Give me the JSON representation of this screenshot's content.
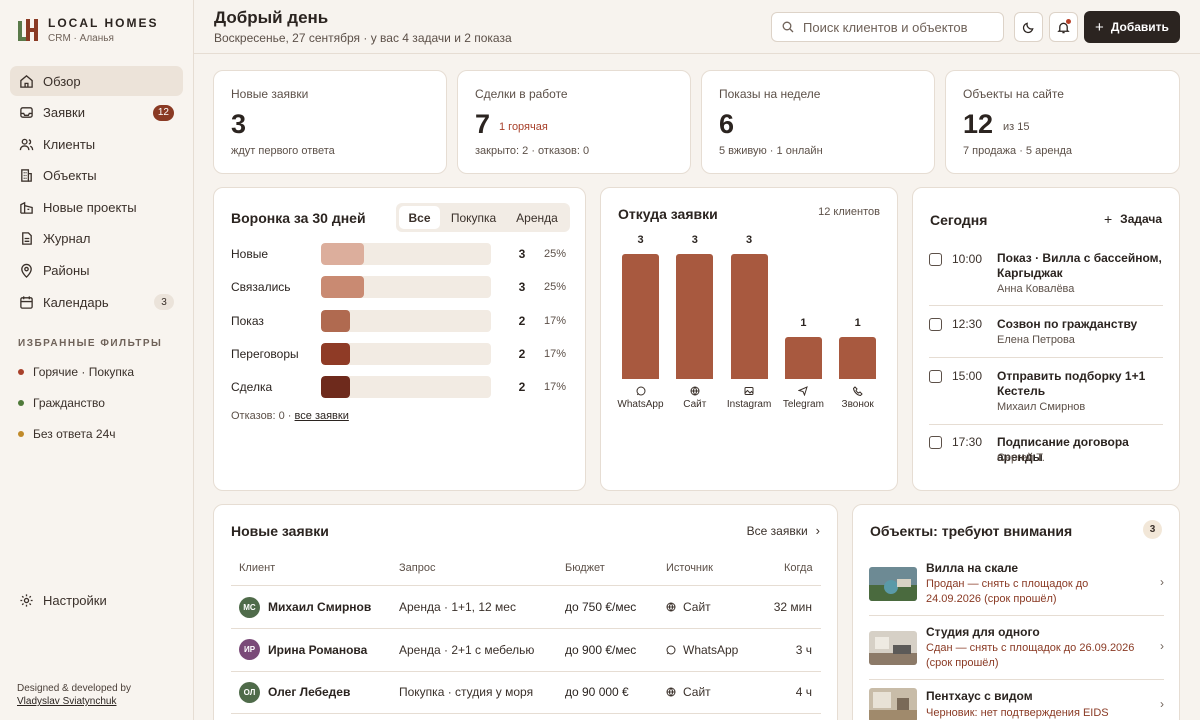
{
  "brand": {
    "name": "LOCAL HOMES",
    "subtitle": "CRM · Аланья"
  },
  "nav": [
    {
      "label": "Обзор",
      "icon": "home-icon",
      "active": true
    },
    {
      "label": "Заявки",
      "icon": "inbox-icon",
      "badge": "12"
    },
    {
      "label": "Клиенты",
      "icon": "users-icon"
    },
    {
      "label": "Объекты",
      "icon": "building-icon"
    },
    {
      "label": "Новые проекты",
      "icon": "project-icon"
    },
    {
      "label": "Журнал",
      "icon": "journal-icon"
    },
    {
      "label": "Районы",
      "icon": "map-pin-icon"
    },
    {
      "label": "Календарь",
      "icon": "calendar-icon",
      "badge": "3"
    }
  ],
  "favorites": {
    "title": "ИЗБРАННЫЕ ФИЛЬТРЫ",
    "items": [
      {
        "label": "Горячие · Покупка",
        "color": "#a8402a"
      },
      {
        "label": "Гражданство",
        "color": "#4f7a3a"
      },
      {
        "label": "Без ответа 24ч",
        "color": "#c08a2a"
      }
    ]
  },
  "settings_label": "Настройки",
  "credit": {
    "line1": "Designed & developed by",
    "author": "Vladyslav Sviatynchuk"
  },
  "header": {
    "greeting": "Добрый день",
    "subline": "Воскресенье, 27 сентября · у вас 4 задачи и 2 показа",
    "search_placeholder": "Поиск клиентов и объектов",
    "add_label": "Добавить"
  },
  "stats": [
    {
      "label": "Новые заявки",
      "value": "3",
      "sub": "ждут первого ответа"
    },
    {
      "label": "Сделки в работе",
      "value": "7",
      "extra": "1 горячая",
      "sub": "закрыто: 2 · отказов: 0"
    },
    {
      "label": "Показы на неделе",
      "value": "6",
      "sub": "5 вживую · 1 онлайн"
    },
    {
      "label": "Объекты на сайте",
      "value": "12",
      "extra": "из 15",
      "sub": "7 продажа · 5 аренда"
    }
  ],
  "funnel": {
    "title": "Воронка за 30 дней",
    "tabs": [
      "Все",
      "Покупка",
      "Аренда"
    ],
    "rows": [
      {
        "label": "Новые",
        "count": "3",
        "pct": "25%",
        "share": 0.25,
        "color": "#dcae9c"
      },
      {
        "label": "Связались",
        "count": "3",
        "pct": "25%",
        "share": 0.25,
        "color": "#c98a72"
      },
      {
        "label": "Показ",
        "count": "2",
        "pct": "17%",
        "share": 0.17,
        "color": "#b06a50"
      },
      {
        "label": "Переговоры",
        "count": "2",
        "pct": "17%",
        "share": 0.17,
        "color": "#8f3b26"
      },
      {
        "label": "Сделка",
        "count": "2",
        "pct": "17%",
        "share": 0.17,
        "color": "#6e2a1c"
      }
    ],
    "footer": "Отказов: 0 ·",
    "footer_link": "все заявки"
  },
  "sources": {
    "title": "Откуда заявки",
    "count_label": "12 клиентов",
    "max": 3,
    "items": [
      {
        "label": "WhatsApp",
        "value": 3,
        "icon": "whatsapp-icon"
      },
      {
        "label": "Сайт",
        "value": 3,
        "icon": "globe-icon"
      },
      {
        "label": "Instagram",
        "value": 3,
        "icon": "image-icon"
      },
      {
        "label": "Telegram",
        "value": 1,
        "icon": "send-icon"
      },
      {
        "label": "Звонок",
        "value": 1,
        "icon": "phone-icon"
      }
    ]
  },
  "today": {
    "title": "Сегодня",
    "add_label": "Задача",
    "tasks": [
      {
        "time": "10:00",
        "title": "Показ · Вилла с бассейном, Каргыджак",
        "person": "Анна Ковалёва"
      },
      {
        "time": "12:30",
        "title": "Созвон по гражданству",
        "person": "Елена Петрова"
      },
      {
        "time": "15:00",
        "title": "Отправить подборку 1+1 Кестель",
        "person": "Михаил Смирнов"
      },
      {
        "time": "17:30",
        "title": "Подписание договора аренды",
        "person": "Сергей Т."
      }
    ]
  },
  "leads": {
    "title": "Новые заявки",
    "all_label": "Все заявки",
    "columns": [
      "Клиент",
      "Запрос",
      "Бюджет",
      "Источник",
      "Когда"
    ],
    "rows": [
      {
        "initials": "МС",
        "avatar_color": "#4f6b4a",
        "name": "Михаил Смирнов",
        "request": "Аренда · 1+1, 12 мес",
        "budget": "до 750 €/мес",
        "source": "Сайт",
        "source_icon": "globe-icon",
        "when": "32 мин"
      },
      {
        "initials": "ИР",
        "avatar_color": "#7a4a78",
        "name": "Ирина Романова",
        "request": "Аренда · 2+1 с мебелью",
        "budget": "до 900 €/мес",
        "source": "WhatsApp",
        "source_icon": "whatsapp-icon",
        "when": "3 ч"
      },
      {
        "initials": "ОЛ",
        "avatar_color": "#4f6b4a",
        "name": "Олег Лебедев",
        "request": "Покупка · студия у моря",
        "budget": "до 90 000 €",
        "source": "Сайт",
        "source_icon": "globe-icon",
        "when": "4 ч"
      }
    ]
  },
  "attention": {
    "title": "Объекты: требуют внимания",
    "badge": "3",
    "items": [
      {
        "name": "Вилла на скале",
        "status": "Продан — снять с площадок до 24.09.2026 (срок прошёл)"
      },
      {
        "name": "Студия для одного",
        "status": "Сдан — снять с площадок до 26.09.2026 (срок прошёл)"
      },
      {
        "name": "Пентхаус с видом",
        "status": "Черновик: нет подтверждения EIDS"
      }
    ]
  }
}
